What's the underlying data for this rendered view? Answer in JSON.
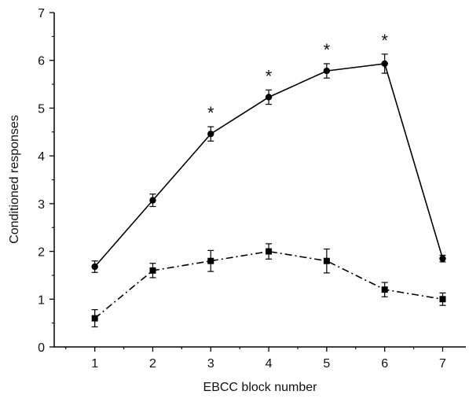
{
  "chart_data": {
    "type": "line",
    "title": "",
    "xlabel": "EBCC block number",
    "ylabel": "Conditioned responses",
    "xlim": [
      0.3,
      7.4
    ],
    "ylim": [
      0,
      7
    ],
    "xticks": [
      1,
      2,
      3,
      4,
      5,
      6,
      7
    ],
    "yticks": [
      0,
      1,
      2,
      3,
      4,
      5,
      6,
      7
    ],
    "grid": false,
    "legend": "none",
    "series": [
      {
        "marker": "circle",
        "line_style": "solid",
        "x": [
          1,
          2,
          3,
          4,
          5,
          6,
          7
        ],
        "y": [
          1.68,
          3.07,
          4.46,
          5.23,
          5.78,
          5.93,
          1.85
        ],
        "error": [
          0.12,
          0.13,
          0.15,
          0.15,
          0.15,
          0.2,
          0.07
        ]
      },
      {
        "marker": "square",
        "line_style": "dash-dot",
        "x": [
          1,
          2,
          3,
          4,
          5,
          6,
          7
        ],
        "y": [
          0.6,
          1.6,
          1.8,
          2.0,
          1.8,
          1.2,
          1.0
        ],
        "error": [
          0.18,
          0.15,
          0.22,
          0.16,
          0.25,
          0.15,
          0.13
        ]
      }
    ],
    "annotations": [
      {
        "text": "*",
        "x": 3
      },
      {
        "text": "*",
        "x": 4
      },
      {
        "text": "*",
        "x": 5
      },
      {
        "text": "*",
        "x": 6
      }
    ]
  }
}
